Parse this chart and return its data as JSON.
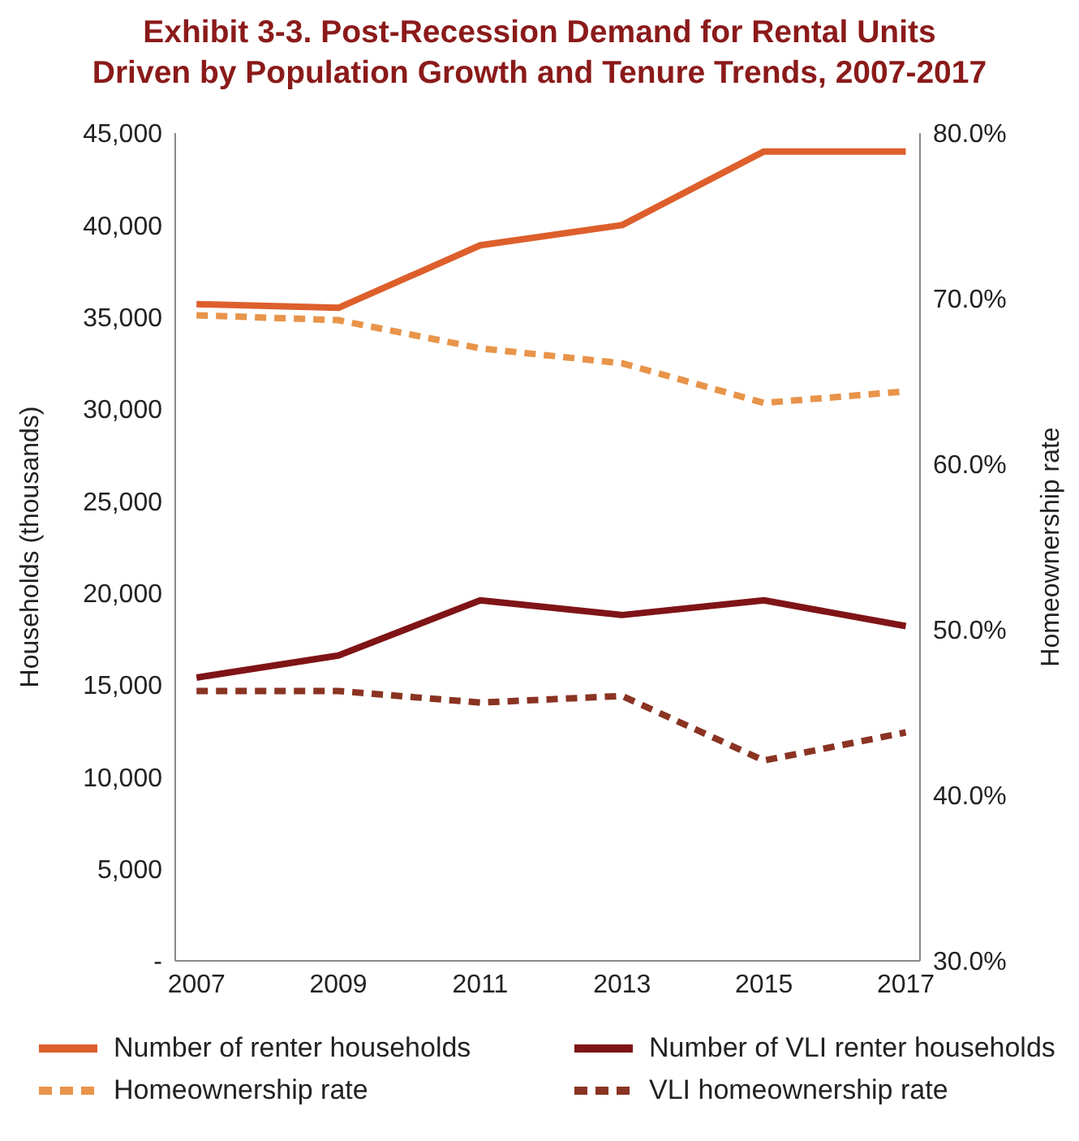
{
  "chart_data": {
    "type": "line",
    "title": "Exhibit 3-3. Post-Recession Demand for Rental Units\nDriven by Population Growth and Tenure Trends, 2007-2017",
    "ylabel": "Households (thousands)",
    "y2label": "Homeownership rate",
    "x": [
      2007,
      2009,
      2011,
      2013,
      2015,
      2017
    ],
    "xlim": [
      2006.7,
      2017.2
    ],
    "xticks": [
      2007,
      2009,
      2011,
      2013,
      2015,
      2017
    ],
    "ylim": [
      0,
      45000
    ],
    "yticks": [
      {
        "value": 0,
        "label": "-"
      },
      {
        "value": 5000,
        "label": "5,000"
      },
      {
        "value": 10000,
        "label": "10,000"
      },
      {
        "value": 15000,
        "label": "15,000"
      },
      {
        "value": 20000,
        "label": "20,000"
      },
      {
        "value": 25000,
        "label": "25,000"
      },
      {
        "value": 30000,
        "label": "30,000"
      },
      {
        "value": 35000,
        "label": "35,000"
      },
      {
        "value": 40000,
        "label": "40,000"
      },
      {
        "value": 45000,
        "label": "45,000"
      }
    ],
    "y2lim": [
      30,
      80
    ],
    "y2ticks": [
      {
        "value": 30,
        "label": "30.0%"
      },
      {
        "value": 40,
        "label": "40.0%"
      },
      {
        "value": 50,
        "label": "50.0%"
      },
      {
        "value": 60,
        "label": "60.0%"
      },
      {
        "value": 70,
        "label": "70.0%"
      },
      {
        "value": 80,
        "label": "80.0%"
      }
    ],
    "grid": false,
    "legend": "bottom",
    "marker": "none",
    "series": [
      {
        "name": "Number of renter households",
        "color": "#dd5f2c",
        "line_style": "solid",
        "values": [
          35700,
          35500,
          38900,
          40000,
          44000,
          44000
        ]
      },
      {
        "name": "Number of VLI renter households",
        "color": "#7f1416",
        "line_style": "solid",
        "values": [
          15400,
          16600,
          19600,
          18800,
          19600,
          18200
        ]
      },
      {
        "name": "Homeownership rate",
        "color": "#e8944a",
        "line_style": "dashed",
        "axis": "y2",
        "values": [
          69.0,
          68.7,
          67.0,
          66.1,
          63.7,
          64.4
        ]
      },
      {
        "name": "VLI homeownership rate",
        "color": "#8a3322",
        "line_style": "dashed",
        "axis": "y2",
        "values": [
          46.3,
          46.3,
          45.6,
          46.0,
          42.1,
          43.8
        ]
      }
    ]
  }
}
